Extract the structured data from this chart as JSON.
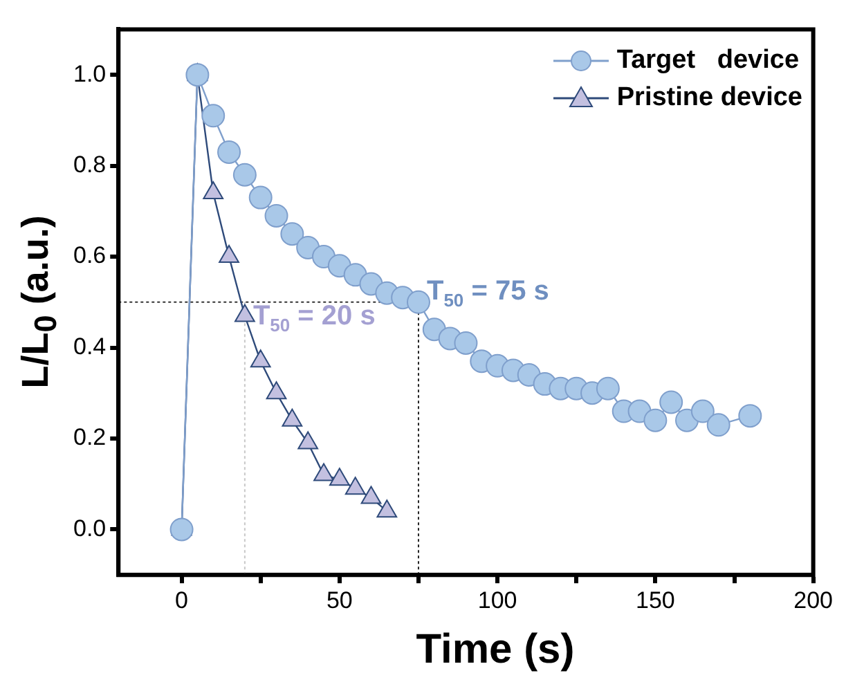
{
  "chart_data": {
    "type": "line",
    "xlabel": "Time (s)",
    "ylabel": "L/L$_{0}$ (a.u.)",
    "xlim": [
      -20,
      200
    ],
    "xticks": [
      0,
      {
        "value": 25,
        "label": null
      },
      50,
      {
        "value": 75,
        "label": null
      },
      100,
      {
        "value": 125,
        "label": null
      },
      150,
      {
        "value": 175,
        "label": null
      },
      200
    ],
    "ylim": [
      -0.1,
      1.1
    ],
    "yticks": [
      {
        "value": 0,
        "label": "0.0"
      },
      0.2,
      0.4,
      0.6,
      0.8,
      {
        "value": 1,
        "label": "1.0"
      }
    ],
    "series": [
      {
        "name": "Target   device",
        "color": "#a9c8e8",
        "marker": "circle",
        "x": [
          0,
          5,
          10,
          15,
          20,
          25,
          30,
          35,
          40,
          45,
          50,
          55,
          60,
          65,
          70,
          75,
          80,
          85,
          90,
          95,
          100,
          105,
          110,
          115,
          120,
          125,
          130,
          135,
          140,
          145,
          150,
          155,
          160,
          165,
          170,
          180
        ],
        "values": [
          0.0,
          1.0,
          0.91,
          0.83,
          0.78,
          0.73,
          0.69,
          0.65,
          0.62,
          0.6,
          0.58,
          0.56,
          0.54,
          0.52,
          0.51,
          0.5,
          0.44,
          0.42,
          0.41,
          0.37,
          0.36,
          0.35,
          0.34,
          0.32,
          0.31,
          0.31,
          0.3,
          0.31,
          0.26,
          0.26,
          0.24,
          0.28,
          0.24,
          0.26,
          0.23,
          0.25
        ]
      },
      {
        "name": "Pristine device",
        "color": "#c3c0e0",
        "marker": "triangle",
        "x": [
          0,
          5,
          10,
          15,
          20,
          25,
          30,
          35,
          40,
          45,
          50,
          55,
          60,
          65
        ],
        "values": [
          0.0,
          1.0,
          0.74,
          0.6,
          0.47,
          0.37,
          0.3,
          0.24,
          0.19,
          0.12,
          0.11,
          0.09,
          0.07,
          0.04
        ]
      }
    ],
    "ref_lines": [
      {
        "axis": "y",
        "value": 0.5,
        "color": "#333333",
        "line_style": "dotted"
      },
      {
        "axis": "x",
        "value": 75,
        "color": "#222222",
        "line_style": "dotted"
      },
      {
        "axis": "x",
        "value": 20,
        "color": "#c8c8c8",
        "line_style": "dotted"
      }
    ],
    "annotations": [
      {
        "text": "T$_{50}$ = 75 s",
        "x": 75,
        "y": 0.5
      },
      {
        "text": "T$_{50}$ = 20 s",
        "x": 20,
        "y": 0.5
      }
    ],
    "legend": "top right",
    "grid": false
  }
}
